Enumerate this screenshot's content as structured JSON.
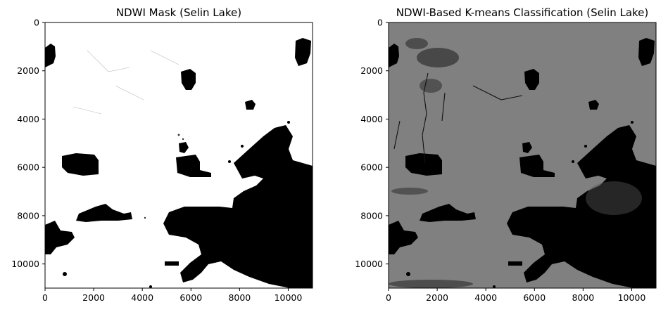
{
  "panels": [
    {
      "title": "NDWI Mask (Selin Lake)",
      "background": "#ffffff",
      "x_ticks": [
        "0",
        "2000",
        "4000",
        "6000",
        "8000",
        "10000"
      ],
      "y_ticks": [
        "0",
        "2000",
        "4000",
        "6000",
        "8000",
        "10000"
      ],
      "x_tick_values": [
        0,
        2000,
        4000,
        6000,
        8000,
        10000
      ],
      "y_tick_values": [
        0,
        2000,
        4000,
        6000,
        8000,
        10000
      ],
      "x_range": [
        0,
        11000
      ],
      "y_range": [
        11000,
        0
      ]
    },
    {
      "title": "NDWI-Based K-means Classification (Selin Lake)",
      "background": "#808080",
      "x_ticks": [
        "0",
        "2000",
        "4000",
        "6000",
        "8000",
        "10000"
      ],
      "y_ticks": [
        "0",
        "2000",
        "4000",
        "6000",
        "8000",
        "10000"
      ],
      "x_tick_values": [
        0,
        2000,
        4000,
        6000,
        8000,
        10000
      ],
      "y_tick_values": [
        0,
        2000,
        4000,
        6000,
        8000,
        10000
      ],
      "x_range": [
        0,
        11000
      ],
      "y_range": [
        11000,
        0
      ]
    }
  ],
  "colors": {
    "water": "#000000",
    "mask_land": "#ffffff",
    "kmeans_land": "#808080"
  }
}
